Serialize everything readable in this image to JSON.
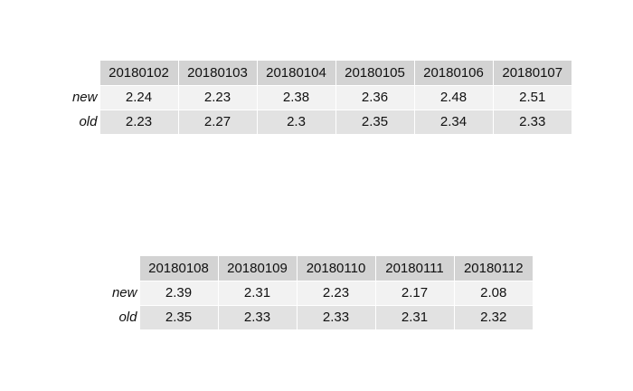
{
  "chart_data": [
    {
      "type": "table",
      "columns": [
        "20180102",
        "20180103",
        "20180104",
        "20180105",
        "20180106",
        "20180107"
      ],
      "rows": [
        {
          "label": "new",
          "values": [
            "2.24",
            "2.23",
            "2.38",
            "2.36",
            "2.48",
            "2.51"
          ]
        },
        {
          "label": "old",
          "values": [
            "2.23",
            "2.27",
            "2.3",
            "2.35",
            "2.34",
            "2.33"
          ]
        }
      ]
    },
    {
      "type": "table",
      "columns": [
        "20180108",
        "20180109",
        "20180110",
        "20180111",
        "20180112"
      ],
      "rows": [
        {
          "label": "new",
          "values": [
            "2.39",
            "2.31",
            "2.23",
            "2.17",
            "2.08"
          ]
        },
        {
          "label": "old",
          "values": [
            "2.35",
            "2.33",
            "2.33",
            "2.31",
            "2.32"
          ]
        }
      ]
    }
  ],
  "colors": {
    "header_bg": "#d3d3d3",
    "row_new_bg": "#f2f2f2",
    "row_old_bg": "#e2e2e2",
    "text": "#111111"
  }
}
